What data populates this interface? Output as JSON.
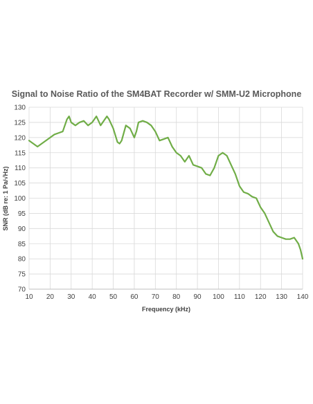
{
  "chart_data": {
    "type": "line",
    "title": "Signal to Noise Ratio of the SM4BAT Recorder w/ SMM-U2 Microphone",
    "xlabel": "Frequency (kHz)",
    "ylabel": "SNR (dB re: 1 Pa/√Hz)",
    "xlim": [
      10,
      140
    ],
    "ylim": [
      70,
      130
    ],
    "xticks": [
      10,
      20,
      30,
      40,
      50,
      60,
      70,
      80,
      90,
      100,
      110,
      120,
      130,
      140
    ],
    "yticks": [
      70,
      75,
      80,
      85,
      90,
      95,
      100,
      105,
      110,
      115,
      120,
      125,
      130
    ],
    "grid": true,
    "legend": "none",
    "colors": {
      "line": "#70ad47",
      "grid": "#d9d9d9",
      "text": "#404040",
      "title": "#595959"
    },
    "series": [
      {
        "name": "",
        "x": [
          10,
          12,
          14,
          16,
          18,
          20,
          22,
          24,
          26,
          28,
          29,
          30,
          32,
          34,
          36,
          38,
          40,
          42,
          44,
          46,
          47,
          48,
          50,
          52,
          53,
          54,
          56,
          58,
          60,
          61,
          62,
          64,
          66,
          68,
          70,
          72,
          74,
          76,
          78,
          80,
          82,
          84,
          86,
          88,
          90,
          92,
          94,
          96,
          98,
          100,
          102,
          104,
          106,
          108,
          110,
          112,
          114,
          116,
          118,
          120,
          122,
          124,
          126,
          128,
          130,
          132,
          134,
          136,
          138,
          139,
          140
        ],
        "y": [
          119,
          118,
          117,
          118,
          119,
          120,
          121,
          121.5,
          122,
          126,
          127,
          125,
          124,
          125,
          125.5,
          124,
          125,
          127,
          124,
          126,
          127,
          126,
          123,
          118.5,
          118,
          119,
          124,
          123,
          120,
          122,
          125,
          125.5,
          125,
          124,
          122,
          119,
          119.5,
          120,
          117,
          115,
          114,
          112,
          114,
          111,
          110.5,
          110,
          108,
          107.5,
          110,
          114,
          115,
          114,
          111,
          108,
          104,
          102,
          101.5,
          100.5,
          100,
          97,
          95,
          92,
          89,
          87.5,
          87,
          86.5,
          86.5,
          87,
          85,
          83,
          80
        ]
      }
    ]
  }
}
